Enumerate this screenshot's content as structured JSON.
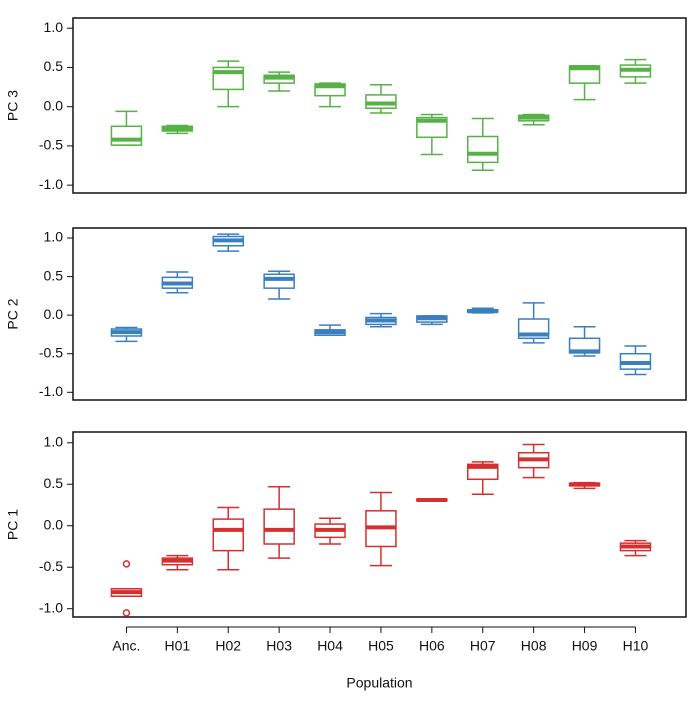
{
  "chart_data": [
    {
      "type": "box",
      "ylabel": "PC 3",
      "color": "#56b146",
      "ylim": [
        -1.1,
        1.13
      ],
      "yticks": [
        {
          "value": 1,
          "label": "1.0"
        },
        0.5,
        {
          "value": 0,
          "label": "0.0"
        },
        -0.5,
        {
          "value": -1,
          "label": "-1.0"
        }
      ],
      "boxes": [
        {
          "low": -0.49,
          "q1": -0.49,
          "median": -0.42,
          "q3": -0.25,
          "high": -0.06
        },
        {
          "low": -0.34,
          "q1": -0.31,
          "median": -0.28,
          "q3": -0.25,
          "high": -0.24
        },
        {
          "low": 0.0,
          "q1": 0.22,
          "median": 0.44,
          "q3": 0.5,
          "high": 0.58
        },
        {
          "low": 0.2,
          "q1": 0.3,
          "median": 0.37,
          "q3": 0.4,
          "high": 0.44
        },
        {
          "low": 0.0,
          "q1": 0.14,
          "median": 0.26,
          "q3": 0.29,
          "high": 0.3
        },
        {
          "low": -0.08,
          "q1": -0.02,
          "median": 0.04,
          "q3": 0.15,
          "high": 0.28
        },
        {
          "low": -0.61,
          "q1": -0.39,
          "median": -0.18,
          "q3": -0.14,
          "high": -0.1
        },
        {
          "low": -0.81,
          "q1": -0.71,
          "median": -0.6,
          "q3": -0.38,
          "high": -0.15
        },
        {
          "low": -0.23,
          "q1": -0.18,
          "median": -0.14,
          "q3": -0.11,
          "high": -0.1
        },
        {
          "low": 0.09,
          "q1": 0.3,
          "median": 0.49,
          "q3": 0.52,
          "high": 0.52
        },
        {
          "low": 0.3,
          "q1": 0.38,
          "median": 0.47,
          "q3": 0.53,
          "high": 0.6
        }
      ]
    },
    {
      "type": "box",
      "ylabel": "PC 2",
      "color": "#3a7fc1",
      "ylim": [
        -1.1,
        1.13
      ],
      "yticks": [
        {
          "value": 1,
          "label": "1.0"
        },
        0.5,
        {
          "value": 0,
          "label": "0.0"
        },
        -0.5,
        {
          "value": -1,
          "label": "-1.0"
        }
      ],
      "boxes": [
        {
          "low": -0.34,
          "q1": -0.27,
          "median": -0.22,
          "q3": -0.18,
          "high": -0.16
        },
        {
          "low": 0.29,
          "q1": 0.35,
          "median": 0.41,
          "q3": 0.49,
          "high": 0.56
        },
        {
          "low": 0.83,
          "q1": 0.9,
          "median": 0.97,
          "q3": 1.02,
          "high": 1.05
        },
        {
          "low": 0.21,
          "q1": 0.35,
          "median": 0.47,
          "q3": 0.53,
          "high": 0.57
        },
        {
          "low": -0.26,
          "q1": -0.26,
          "median": -0.22,
          "q3": -0.19,
          "high": -0.13
        },
        {
          "low": -0.15,
          "q1": -0.12,
          "median": -0.07,
          "q3": -0.03,
          "high": 0.02
        },
        {
          "low": -0.12,
          "q1": -0.09,
          "median": -0.04,
          "q3": -0.01,
          "high": -0.01
        },
        {
          "low": 0.03,
          "q1": 0.04,
          "median": 0.05,
          "q3": 0.07,
          "high": 0.09
        },
        {
          "low": -0.36,
          "q1": -0.3,
          "median": -0.25,
          "q3": -0.05,
          "high": 0.16
        },
        {
          "low": -0.53,
          "q1": -0.49,
          "median": -0.47,
          "q3": -0.3,
          "high": -0.15
        },
        {
          "low": -0.77,
          "q1": -0.7,
          "median": -0.62,
          "q3": -0.5,
          "high": -0.4
        }
      ]
    },
    {
      "type": "box",
      "ylabel": "PC 1",
      "xlabel": "Population",
      "color": "#d62f2f",
      "ylim": [
        -1.1,
        1.13
      ],
      "yticks": [
        {
          "value": 1,
          "label": "1.0"
        },
        0.5,
        {
          "value": 0,
          "label": "0.0"
        },
        -0.5,
        {
          "value": -1,
          "label": "-1.0"
        }
      ],
      "categories": [
        "Anc.",
        "H01",
        "H02",
        "H03",
        "H04",
        "H05",
        "H06",
        "H07",
        "H08",
        "H09",
        "H10"
      ],
      "boxes": [
        {
          "low": -0.85,
          "q1": -0.85,
          "median": -0.8,
          "q3": -0.76,
          "high": -0.76,
          "outliers": [
            -0.46,
            -1.05
          ]
        },
        {
          "low": -0.53,
          "q1": -0.47,
          "median": -0.42,
          "q3": -0.39,
          "high": -0.36
        },
        {
          "low": -0.53,
          "q1": -0.3,
          "median": -0.05,
          "q3": 0.08,
          "high": 0.22
        },
        {
          "low": -0.39,
          "q1": -0.22,
          "median": -0.05,
          "q3": 0.2,
          "high": 0.47
        },
        {
          "low": -0.22,
          "q1": -0.14,
          "median": -0.05,
          "q3": 0.02,
          "high": 0.09
        },
        {
          "low": -0.48,
          "q1": -0.25,
          "median": -0.02,
          "q3": 0.18,
          "high": 0.4
        },
        {
          "low": 0.3,
          "q1": 0.3,
          "median": 0.31,
          "q3": 0.32,
          "high": 0.32
        },
        {
          "low": 0.38,
          "q1": 0.56,
          "median": 0.71,
          "q3": 0.74,
          "high": 0.77
        },
        {
          "low": 0.58,
          "q1": 0.7,
          "median": 0.8,
          "q3": 0.88,
          "high": 0.98
        },
        {
          "low": 0.45,
          "q1": 0.48,
          "median": 0.5,
          "q3": 0.51,
          "high": 0.52
        },
        {
          "low": -0.36,
          "q1": -0.3,
          "median": -0.25,
          "q3": -0.21,
          "high": -0.18
        }
      ]
    }
  ]
}
